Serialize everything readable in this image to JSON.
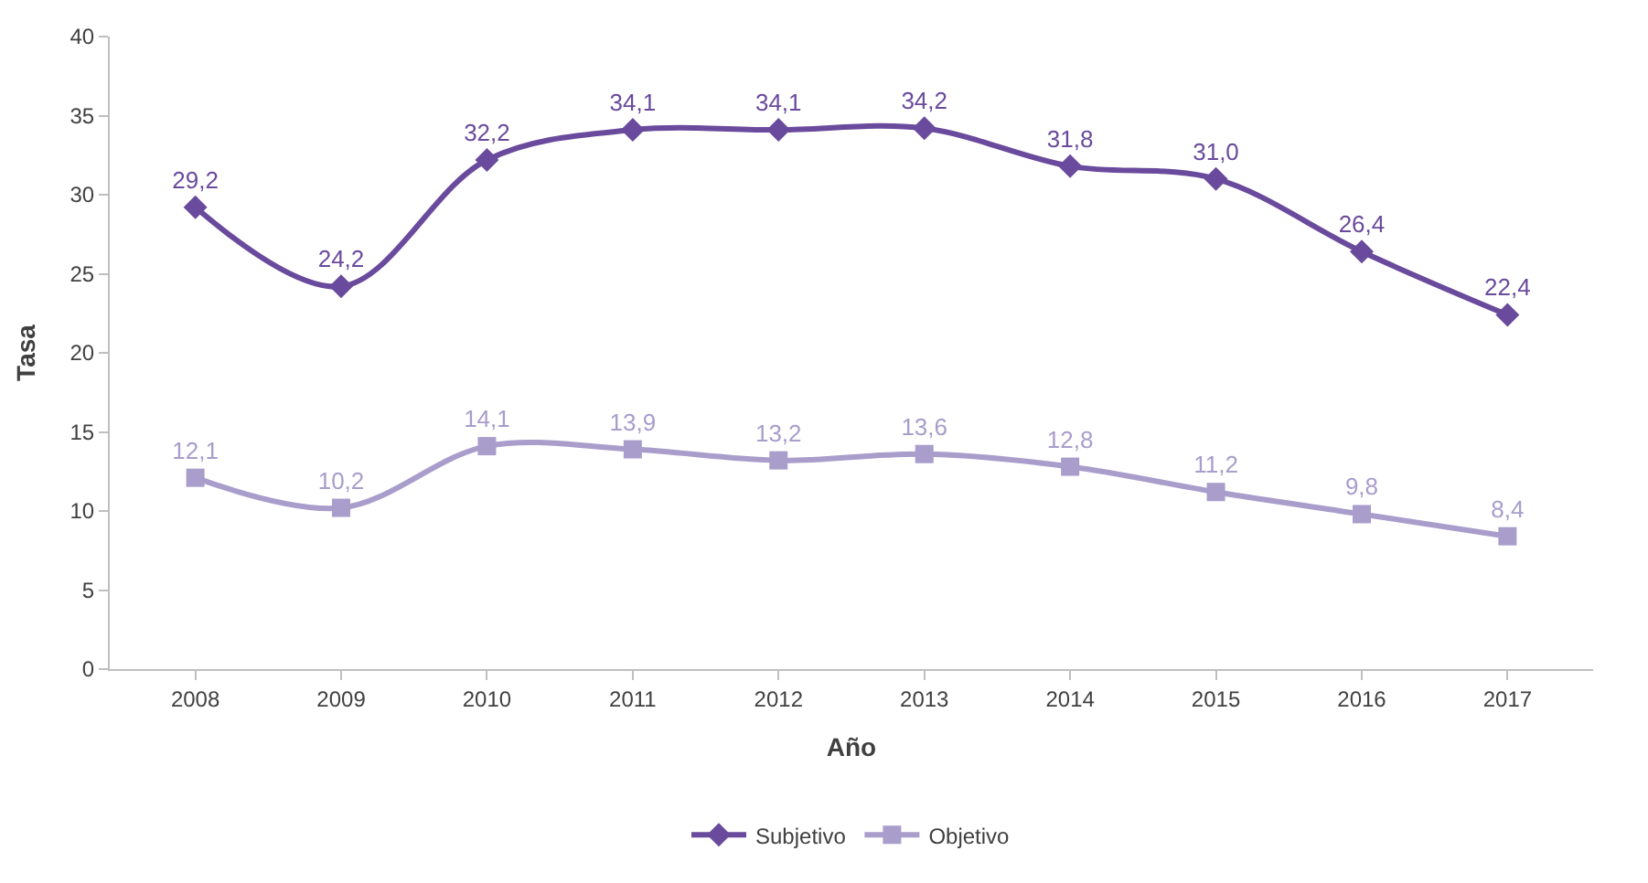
{
  "chart_data": {
    "type": "line",
    "xlabel": "Año",
    "ylabel": "Tasa",
    "categories": [
      "2008",
      "2009",
      "2010",
      "2011",
      "2012",
      "2013",
      "2014",
      "2015",
      "2016",
      "2017"
    ],
    "series": [
      {
        "name": "Subjetivo",
        "color": "#6a4a9c",
        "marker": "diamond",
        "values": [
          29.2,
          24.2,
          32.2,
          34.1,
          34.1,
          34.2,
          31.8,
          31.0,
          26.4,
          22.4
        ],
        "value_labels": [
          "29,2",
          "24,2",
          "32,2",
          "34,1",
          "34,1",
          "34,2",
          "31,8",
          "31,0",
          "26,4",
          "22,4"
        ]
      },
      {
        "name": "Objetivo",
        "color": "#a89dcb",
        "marker": "square",
        "values": [
          12.1,
          10.2,
          14.1,
          13.9,
          13.2,
          13.6,
          12.8,
          11.2,
          9.8,
          8.4
        ],
        "value_labels": [
          "12,1",
          "10,2",
          "14,1",
          "13,9",
          "13,2",
          "13,6",
          "12,8",
          "11,2",
          "9,8",
          "8,4"
        ]
      }
    ],
    "ylim": [
      0,
      40
    ],
    "yticks": [
      0,
      5,
      10,
      15,
      20,
      25,
      30,
      35,
      40
    ],
    "legend": "bottom",
    "line_style": "solid"
  }
}
